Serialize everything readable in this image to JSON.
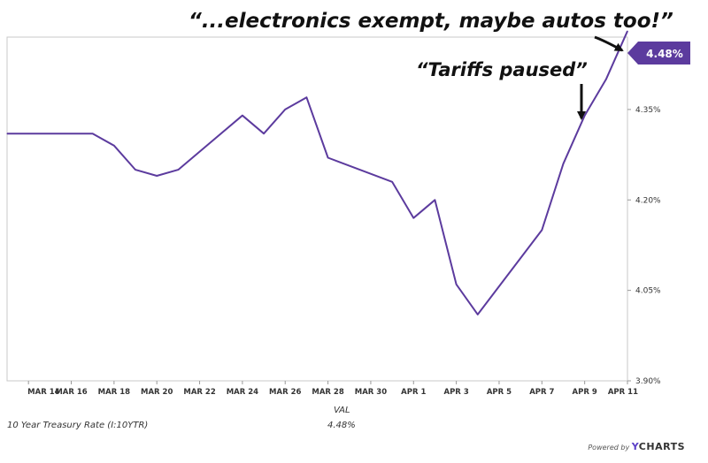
{
  "chart_data": {
    "type": "line",
    "title": "",
    "x_tick_labels": [
      "MAR 14",
      "MAR 16",
      "MAR 18",
      "MAR 20",
      "MAR 22",
      "MAR 24",
      "MAR 26",
      "MAR 28",
      "MAR 30",
      "APR 1",
      "APR 3",
      "APR 5",
      "APR 7",
      "APR 9",
      "APR 11"
    ],
    "y_tick_labels": [
      "4.35%",
      "4.20%",
      "4.05%",
      "3.90%"
    ],
    "ylim": [
      3.9,
      4.47
    ],
    "grid": false,
    "series": [
      {
        "name": "10 Year Treasury Rate (I:10YTR)",
        "color": "#5c3b9e",
        "points": [
          {
            "x": "2025-03-13",
            "y": 4.31
          },
          {
            "x": "2025-03-14",
            "y": 4.31
          },
          {
            "x": "2025-03-17",
            "y": 4.31
          },
          {
            "x": "2025-03-18",
            "y": 4.29
          },
          {
            "x": "2025-03-19",
            "y": 4.25
          },
          {
            "x": "2025-03-20",
            "y": 4.24
          },
          {
            "x": "2025-03-21",
            "y": 4.25
          },
          {
            "x": "2025-03-24",
            "y": 4.34
          },
          {
            "x": "2025-03-25",
            "y": 4.31
          },
          {
            "x": "2025-03-26",
            "y": 4.35
          },
          {
            "x": "2025-03-27",
            "y": 4.37
          },
          {
            "x": "2025-03-28",
            "y": 4.27
          },
          {
            "x": "2025-03-31",
            "y": 4.23
          },
          {
            "x": "2025-04-01",
            "y": 4.17
          },
          {
            "x": "2025-04-02",
            "y": 4.2
          },
          {
            "x": "2025-04-03",
            "y": 4.06
          },
          {
            "x": "2025-04-04",
            "y": 4.01
          },
          {
            "x": "2025-04-07",
            "y": 4.15
          },
          {
            "x": "2025-04-08",
            "y": 4.26
          },
          {
            "x": "2025-04-09",
            "y": 4.34
          },
          {
            "x": "2025-04-10",
            "y": 4.4
          },
          {
            "x": "2025-04-11",
            "y": 4.48
          }
        ]
      }
    ],
    "end_label": "4.48%",
    "annotations": [
      {
        "text": "“...electronics exempt, maybe autos too!”"
      },
      {
        "text": "“Tariffs paused”"
      }
    ]
  },
  "footer": {
    "val_header": "VAL",
    "series_name": "10 Year Treasury Rate (I:10YTR)",
    "series_value": "4.48%"
  },
  "branding": {
    "powered_by": "Powered by",
    "brand_y": "Y",
    "brand_rest": "CHARTS"
  }
}
